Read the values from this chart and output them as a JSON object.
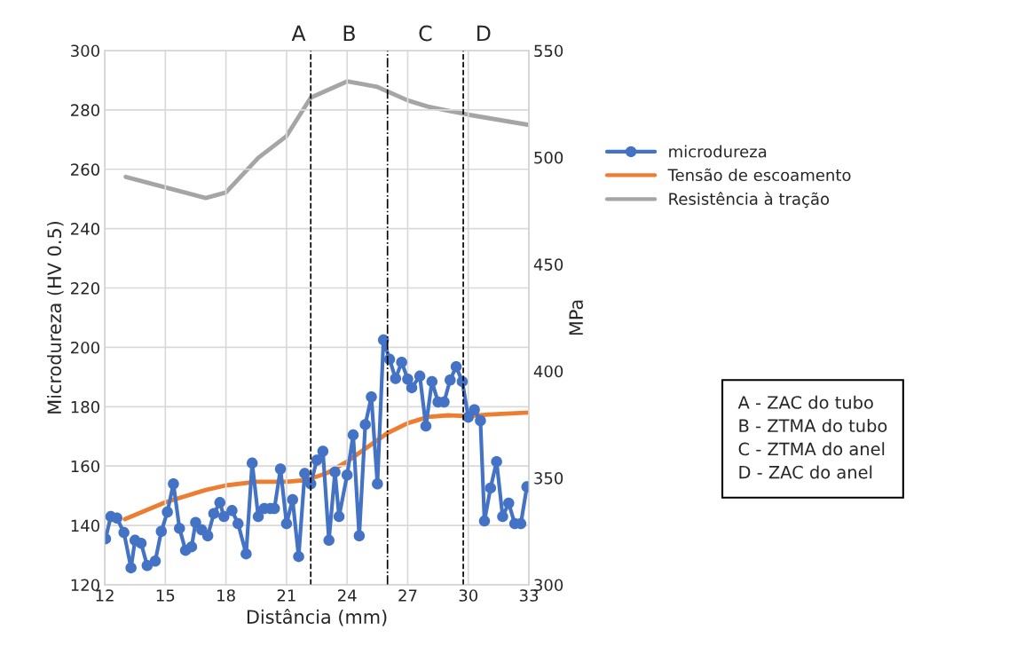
{
  "chart_data": {
    "type": "line",
    "xlabel": "Distância (mm)",
    "ylabel": "Microdureza (HV 0.5)",
    "y2label": "MPa",
    "xlim": [
      12,
      33
    ],
    "xticks": [
      12,
      15,
      18,
      21,
      24,
      27,
      30,
      33
    ],
    "ylim": [
      120,
      300
    ],
    "yticks": [
      120,
      140,
      160,
      180,
      200,
      220,
      240,
      260,
      280,
      300
    ],
    "y2lim": [
      300,
      550
    ],
    "y2ticks": [
      300,
      350,
      400,
      450,
      500,
      550
    ],
    "grid": true,
    "legend": "right",
    "series": [
      {
        "name": "microdureza",
        "color": "#4472c4",
        "marker": "circle",
        "x": [
          12.04,
          12.3,
          12.6,
          12.95,
          13.3,
          13.5,
          13.8,
          14.1,
          14.5,
          14.8,
          15.1,
          15.4,
          15.7,
          16.0,
          16.3,
          16.5,
          16.8,
          17.1,
          17.4,
          17.7,
          17.9,
          18.3,
          18.6,
          19.0,
          19.3,
          19.6,
          19.9,
          20.2,
          20.4,
          20.7,
          21.0,
          21.3,
          21.6,
          21.9,
          22.2,
          22.5,
          22.8,
          23.1,
          23.4,
          23.6,
          24.0,
          24.3,
          24.6,
          24.9,
          25.2,
          25.5,
          25.8,
          26.1,
          26.4,
          26.7,
          27.0,
          27.2,
          27.6,
          27.9,
          28.2,
          28.5,
          28.8,
          29.1,
          29.4,
          29.7,
          30.0,
          30.3,
          30.6,
          30.8,
          31.1,
          31.4,
          31.7,
          32.0,
          32.3,
          32.6,
          32.9
        ],
        "values": [
          135.5,
          143,
          142.5,
          137.6,
          125.7,
          135,
          134,
          126.5,
          128,
          138,
          144.5,
          154,
          139,
          131.6,
          132.8,
          141,
          138.5,
          136.5,
          144,
          147.7,
          143,
          145,
          140.6,
          130.4,
          161,
          143,
          145.7,
          145.7,
          145.7,
          159,
          140.6,
          148.7,
          129.5,
          157.5,
          154,
          162,
          165,
          135,
          158,
          143,
          157,
          170.5,
          136.5,
          174,
          183.3,
          154,
          202.5,
          196,
          189.5,
          195,
          189.3,
          186.4,
          190.3,
          173.5,
          188.5,
          181.6,
          181.6,
          189,
          193.5,
          188.5,
          176.5,
          179,
          175.3,
          141.5,
          152.6,
          161.5,
          143,
          147.5,
          140.6,
          140.6,
          153
        ]
      },
      {
        "name": "Tensão de escoamento",
        "color": "#ed7d31",
        "axis": "y2",
        "x": [
          13,
          15,
          17,
          18,
          19.5,
          21,
          22,
          23,
          24,
          25,
          26,
          27,
          28,
          29,
          30,
          31,
          33
        ],
        "values": [
          330.7,
          338.6,
          344.4,
          346.5,
          348.2,
          348.2,
          349,
          352.3,
          357.7,
          364.4,
          371,
          375.6,
          378.5,
          379.3,
          378.9,
          379.7,
          380.6
        ]
      },
      {
        "name": "Resistência à tração",
        "color": "#a5a5a5",
        "axis": "y2",
        "x": [
          13.04,
          15,
          17,
          18,
          19.6,
          21,
          22.2,
          24,
          25.5,
          27,
          28,
          30,
          33
        ],
        "values": [
          490.9,
          486,
          481,
          483.6,
          499.8,
          510,
          528,
          535.6,
          533,
          526.7,
          523.8,
          520,
          515.2
        ]
      }
    ],
    "ref_lines": [
      {
        "axis": "x",
        "value": 22.2,
        "line_style": "dashed",
        "color": "#000000"
      },
      {
        "axis": "x",
        "value": 26.0,
        "line_style": "dashdot",
        "color": "#000000"
      },
      {
        "axis": "x",
        "value": 29.75,
        "line_style": "dashed",
        "color": "#000000"
      }
    ],
    "annotations": [
      "A",
      "B",
      "C",
      "D",
      "A - ZAC do tubo\nB - ZTMA do tubo\nC - ZTMA do anel\nD - ZAC do anel"
    ]
  }
}
